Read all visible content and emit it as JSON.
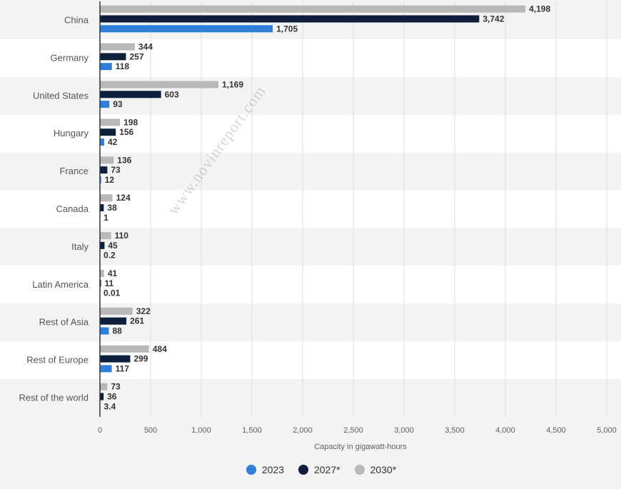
{
  "chart_data": {
    "type": "bar",
    "orientation": "horizontal",
    "categories": [
      "China",
      "Germany",
      "United States",
      "Hungary",
      "France",
      "Canada",
      "Italy",
      "Latin America",
      "Rest of Asia",
      "Rest of Europe",
      "Rest of the world"
    ],
    "series": [
      {
        "name": "2023",
        "color": "#2f7ed8",
        "values": [
          1705,
          118,
          93,
          42,
          12,
          1,
          0.2,
          0.01,
          88,
          117,
          3.4
        ],
        "labels": [
          "1,705",
          "118",
          "93",
          "42",
          "12",
          "1",
          "0.2",
          "0.01",
          "88",
          "117",
          "3.4"
        ]
      },
      {
        "name": "2027*",
        "color": "#0d1f3c",
        "values": [
          3742,
          257,
          603,
          156,
          73,
          38,
          45,
          11,
          261,
          299,
          36
        ],
        "labels": [
          "3,742",
          "257",
          "603",
          "156",
          "73",
          "38",
          "45",
          "11",
          "261",
          "299",
          "36"
        ]
      },
      {
        "name": "2030*",
        "color": "#b8b8b8",
        "values": [
          4198,
          344,
          1169,
          198,
          136,
          124,
          110,
          41,
          322,
          484,
          73
        ],
        "labels": [
          "4,198",
          "344",
          "1,169",
          "198",
          "136",
          "124",
          "110",
          "41",
          "322",
          "484",
          "73"
        ]
      }
    ],
    "xlim": [
      0,
      5000
    ],
    "xticks": [
      0,
      500,
      1000,
      1500,
      2000,
      2500,
      3000,
      3500,
      4000,
      4500,
      5000
    ],
    "xtick_labels": [
      "0",
      "500",
      "1,000",
      "1,500",
      "2,000",
      "2,500",
      "3,000",
      "3,500",
      "4,000",
      "4,500",
      "5,000"
    ],
    "xlabel": "Capacity in gigawatt-hours",
    "grid": true,
    "legend_position": "bottom"
  },
  "watermark": "www.novinreport.com"
}
